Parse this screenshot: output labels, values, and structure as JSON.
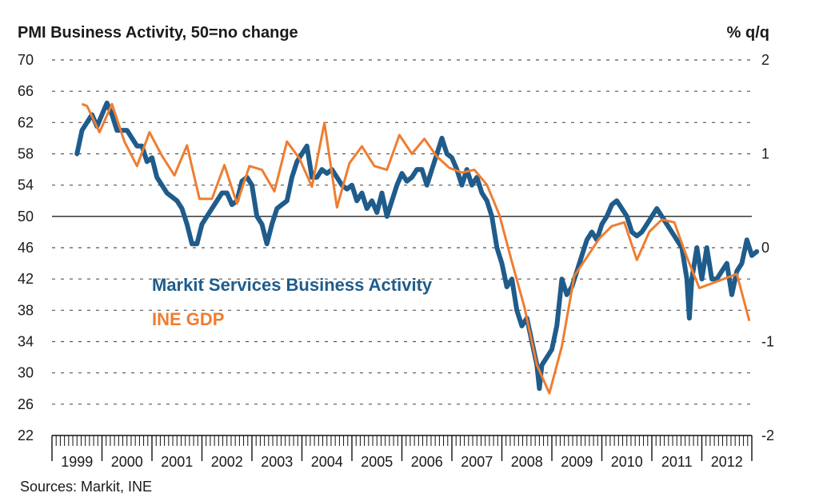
{
  "chart_data": {
    "type": "line",
    "title": "PMI Business Activity, 50=no change",
    "right_axis_title": "% q/q",
    "source": "Sources: Markit, INE",
    "left_axis": {
      "min": 22,
      "max": 70,
      "ticks": [
        70,
        66,
        62,
        58,
        54,
        50,
        46,
        42,
        38,
        34,
        30,
        26,
        22
      ]
    },
    "right_axis": {
      "min": -2,
      "max": 2,
      "ticks": [
        2,
        1,
        0,
        -1,
        -2
      ]
    },
    "x_axis": {
      "start": 1999,
      "end": 2013,
      "labels": [
        "1999",
        "2000",
        "2001",
        "2002",
        "2003",
        "2004",
        "2005",
        "2006",
        "2007",
        "2008",
        "2009",
        "2010",
        "2011",
        "2012"
      ]
    },
    "reference_line": 50,
    "grid": "dotted horizontal",
    "series": [
      {
        "name": "Markit Services Business Activity",
        "axis": "left",
        "color": "#1f5c8b",
        "points": [
          [
            1999.5,
            58
          ],
          [
            1999.6,
            61
          ],
          [
            1999.8,
            63
          ],
          [
            1999.9,
            61.5
          ],
          [
            2000.0,
            63
          ],
          [
            2000.1,
            64.5
          ],
          [
            2000.2,
            63
          ],
          [
            2000.3,
            61
          ],
          [
            2000.5,
            61
          ],
          [
            2000.6,
            60
          ],
          [
            2000.7,
            59
          ],
          [
            2000.8,
            59
          ],
          [
            2000.9,
            57
          ],
          [
            2001.0,
            57.5
          ],
          [
            2001.1,
            55
          ],
          [
            2001.2,
            54
          ],
          [
            2001.3,
            53
          ],
          [
            2001.4,
            52.5
          ],
          [
            2001.5,
            52
          ],
          [
            2001.6,
            51
          ],
          [
            2001.7,
            49
          ],
          [
            2001.8,
            46.5
          ],
          [
            2001.9,
            46.5
          ],
          [
            2002.0,
            49
          ],
          [
            2002.1,
            50
          ],
          [
            2002.2,
            51
          ],
          [
            2002.4,
            53
          ],
          [
            2002.5,
            53
          ],
          [
            2002.6,
            51.5
          ],
          [
            2002.7,
            52
          ],
          [
            2002.8,
            54.5
          ],
          [
            2002.9,
            55
          ],
          [
            2003.0,
            54
          ],
          [
            2003.1,
            50
          ],
          [
            2003.2,
            49
          ],
          [
            2003.3,
            46.5
          ],
          [
            2003.4,
            49
          ],
          [
            2003.5,
            51
          ],
          [
            2003.6,
            51.5
          ],
          [
            2003.7,
            52
          ],
          [
            2003.8,
            55
          ],
          [
            2003.9,
            57
          ],
          [
            2004.0,
            58
          ],
          [
            2004.1,
            59
          ],
          [
            2004.2,
            55
          ],
          [
            2004.3,
            55
          ],
          [
            2004.4,
            56
          ],
          [
            2004.5,
            55.5
          ],
          [
            2004.6,
            56
          ],
          [
            2004.7,
            55
          ],
          [
            2004.8,
            54
          ],
          [
            2004.9,
            53.5
          ],
          [
            2005.0,
            54
          ],
          [
            2005.1,
            52
          ],
          [
            2005.2,
            53
          ],
          [
            2005.3,
            51
          ],
          [
            2005.4,
            52
          ],
          [
            2005.5,
            50.5
          ],
          [
            2005.6,
            53
          ],
          [
            2005.7,
            50
          ],
          [
            2005.8,
            52
          ],
          [
            2005.9,
            54
          ],
          [
            2006.0,
            55.5
          ],
          [
            2006.1,
            54.5
          ],
          [
            2006.2,
            55
          ],
          [
            2006.3,
            56
          ],
          [
            2006.4,
            56
          ],
          [
            2006.5,
            54
          ],
          [
            2006.6,
            56
          ],
          [
            2006.7,
            58
          ],
          [
            2006.8,
            60
          ],
          [
            2006.9,
            58
          ],
          [
            2007.0,
            57.5
          ],
          [
            2007.1,
            56
          ],
          [
            2007.2,
            54
          ],
          [
            2007.3,
            56
          ],
          [
            2007.4,
            54
          ],
          [
            2007.5,
            55
          ],
          [
            2007.6,
            53
          ],
          [
            2007.7,
            52
          ],
          [
            2007.8,
            50
          ],
          [
            2007.9,
            46
          ],
          [
            2008.0,
            44
          ],
          [
            2008.1,
            41
          ],
          [
            2008.2,
            42
          ],
          [
            2008.3,
            38
          ],
          [
            2008.4,
            36
          ],
          [
            2008.5,
            37
          ],
          [
            2008.6,
            34
          ],
          [
            2008.7,
            31
          ],
          [
            2008.75,
            28
          ],
          [
            2008.8,
            31
          ],
          [
            2008.9,
            32
          ],
          [
            2009.0,
            33
          ],
          [
            2009.1,
            36
          ],
          [
            2009.2,
            42
          ],
          [
            2009.3,
            40
          ],
          [
            2009.4,
            41
          ],
          [
            2009.5,
            43
          ],
          [
            2009.6,
            45
          ],
          [
            2009.7,
            47
          ],
          [
            2009.8,
            48
          ],
          [
            2009.9,
            47
          ],
          [
            2010.0,
            49
          ],
          [
            2010.1,
            50
          ],
          [
            2010.2,
            51.5
          ],
          [
            2010.3,
            52
          ],
          [
            2010.4,
            51
          ],
          [
            2010.5,
            50
          ],
          [
            2010.6,
            48
          ],
          [
            2010.7,
            47.5
          ],
          [
            2010.8,
            48
          ],
          [
            2010.9,
            49
          ],
          [
            2011.0,
            50
          ],
          [
            2011.1,
            51
          ],
          [
            2011.2,
            50
          ],
          [
            2011.3,
            49
          ],
          [
            2011.4,
            48
          ],
          [
            2011.5,
            47
          ],
          [
            2011.6,
            46
          ],
          [
            2011.7,
            42
          ],
          [
            2011.75,
            37
          ],
          [
            2011.8,
            42
          ],
          [
            2011.9,
            46
          ],
          [
            2012.0,
            42
          ],
          [
            2012.1,
            46
          ],
          [
            2012.2,
            42
          ],
          [
            2012.3,
            42
          ],
          [
            2012.4,
            43
          ],
          [
            2012.5,
            44
          ],
          [
            2012.6,
            40
          ],
          [
            2012.7,
            43
          ],
          [
            2012.8,
            44
          ],
          [
            2012.9,
            47
          ],
          [
            2013.0,
            45
          ],
          [
            2013.1,
            45.5
          ]
        ]
      },
      {
        "name": "INE GDP",
        "axis": "right",
        "color": "#ef7d31",
        "points": [
          [
            1999.6,
            1.53
          ],
          [
            1999.7,
            1.51
          ],
          [
            1999.95,
            1.23
          ],
          [
            2000.2,
            1.53
          ],
          [
            2000.45,
            1.13
          ],
          [
            2000.7,
            0.87
          ],
          [
            2000.95,
            1.23
          ],
          [
            2001.2,
            0.98
          ],
          [
            2001.45,
            0.77
          ],
          [
            2001.7,
            1.09
          ],
          [
            2001.95,
            0.52
          ],
          [
            2002.2,
            0.52
          ],
          [
            2002.45,
            0.88
          ],
          [
            2002.7,
            0.47
          ],
          [
            2002.95,
            0.87
          ],
          [
            2003.2,
            0.83
          ],
          [
            2003.45,
            0.6
          ],
          [
            2003.7,
            1.13
          ],
          [
            2003.95,
            0.95
          ],
          [
            2004.2,
            0.65
          ],
          [
            2004.45,
            1.33
          ],
          [
            2004.7,
            0.43
          ],
          [
            2004.95,
            0.9
          ],
          [
            2005.2,
            1.08
          ],
          [
            2005.45,
            0.87
          ],
          [
            2005.7,
            0.83
          ],
          [
            2005.95,
            1.2
          ],
          [
            2006.2,
            1.0
          ],
          [
            2006.45,
            1.16
          ],
          [
            2006.7,
            0.97
          ],
          [
            2006.95,
            0.85
          ],
          [
            2007.2,
            0.8
          ],
          [
            2007.45,
            0.83
          ],
          [
            2007.7,
            0.67
          ],
          [
            2007.95,
            0.35
          ],
          [
            2008.2,
            -0.15
          ],
          [
            2008.45,
            -0.63
          ],
          [
            2008.7,
            -1.25
          ],
          [
            2008.95,
            -1.55
          ],
          [
            2009.2,
            -1.05
          ],
          [
            2009.45,
            -0.3
          ],
          [
            2009.7,
            -0.1
          ],
          [
            2009.95,
            0.1
          ],
          [
            2010.2,
            0.23
          ],
          [
            2010.45,
            0.27
          ],
          [
            2010.7,
            -0.13
          ],
          [
            2010.95,
            0.17
          ],
          [
            2011.2,
            0.3
          ],
          [
            2011.45,
            0.27
          ],
          [
            2011.7,
            -0.1
          ],
          [
            2011.95,
            -0.43
          ],
          [
            2012.2,
            -0.38
          ],
          [
            2012.45,
            -0.33
          ],
          [
            2012.7,
            -0.28
          ],
          [
            2012.95,
            -0.78
          ]
        ]
      }
    ]
  }
}
